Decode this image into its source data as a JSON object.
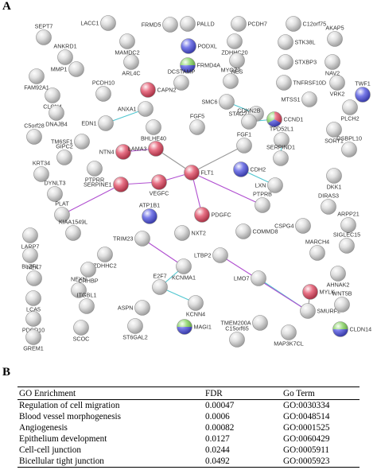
{
  "panel_a_label": "A",
  "panel_b_label": "B",
  "colors": {
    "red": "#e0435d",
    "blue": "#4b4fe0",
    "green": "#7ccf54",
    "grey": "#d6d6d6",
    "edge_purple": "#b04fd0",
    "edge_cyan": "#4fc6d0",
    "edge_grey": "#999999"
  },
  "network": {
    "nodes": [
      {
        "id": "SEPT7",
        "label": "SEPT7",
        "colors": [
          "grey"
        ]
      },
      {
        "id": "LACC1",
        "label": "LACC1",
        "colors": [
          "grey"
        ]
      },
      {
        "id": "FRMD5",
        "label": "FRMD5",
        "colors": [
          "grey"
        ]
      },
      {
        "id": "PALLD",
        "label": "PALLD",
        "colors": [
          "grey"
        ]
      },
      {
        "id": "PCDH7",
        "label": "PCDH7",
        "colors": [
          "grey"
        ]
      },
      {
        "id": "C12orf75",
        "label": "C12orf75",
        "colors": [
          "grey"
        ]
      },
      {
        "id": "ANKRD1",
        "label": "ANKRD1",
        "colors": [
          "grey"
        ]
      },
      {
        "id": "MAMDC2",
        "label": "MAMDC2",
        "colors": [
          "grey"
        ]
      },
      {
        "id": "PODXL",
        "label": "PODXL",
        "colors": [
          "blue"
        ]
      },
      {
        "id": "ZDHHC20",
        "label": "ZDHHC20",
        "colors": [
          "grey"
        ]
      },
      {
        "id": "STK38L",
        "label": "STK38L",
        "colors": [
          "grey"
        ]
      },
      {
        "id": "AKAP5",
        "label": "AKAP5",
        "colors": [
          "grey"
        ]
      },
      {
        "id": "FRMD4A",
        "label": "FRMD4A",
        "colors": [
          "blue",
          "green"
        ]
      },
      {
        "id": "NES",
        "label": "NES",
        "colors": [
          "grey"
        ]
      },
      {
        "id": "STXBP3",
        "label": "STXBP3",
        "colors": [
          "grey"
        ]
      },
      {
        "id": "NAV2",
        "label": "NAV2",
        "colors": [
          "grey"
        ]
      },
      {
        "id": "FAM92A1",
        "label": "FAM92A1",
        "colors": [
          "grey"
        ]
      },
      {
        "id": "MMP1",
        "label": "MMP1",
        "colors": [
          "grey"
        ]
      },
      {
        "id": "ARL4C",
        "label": "ARL4C",
        "colors": [
          "grey"
        ]
      },
      {
        "id": "DCSTAMP",
        "label": "DCSTAMP",
        "colors": [
          "grey"
        ]
      },
      {
        "id": "MYOZ2",
        "label": "MYOZ2",
        "colors": [
          "grey"
        ]
      },
      {
        "id": "TNFRSF10D",
        "label": "TNFRSF10D",
        "colors": [
          "grey"
        ]
      },
      {
        "id": "VRK2",
        "label": "VRK2",
        "colors": [
          "grey"
        ]
      },
      {
        "id": "CLCN4",
        "label": "CLCN4",
        "colors": [
          "grey"
        ]
      },
      {
        "id": "PCDH10",
        "label": "PCDH10",
        "colors": [
          "grey"
        ]
      },
      {
        "id": "CAPN2",
        "label": "CAPN2",
        "colors": [
          "red"
        ]
      },
      {
        "id": "MTSS1",
        "label": "MTSS1",
        "colors": [
          "grey"
        ]
      },
      {
        "id": "TWF1",
        "label": "TWF1",
        "colors": [
          "blue"
        ]
      },
      {
        "id": "ANXA1",
        "label": "ANXA1",
        "colors": [
          "grey"
        ]
      },
      {
        "id": "SMC6",
        "label": "SMC6",
        "colors": [
          "grey"
        ]
      },
      {
        "id": "STAG2",
        "label": "STAG2",
        "colors": [
          "grey"
        ]
      },
      {
        "id": "PLCH2",
        "label": "PLCH2",
        "colors": [
          "grey"
        ]
      },
      {
        "id": "DNAJB4",
        "label": "DNAJB4",
        "colors": [
          "grey"
        ]
      },
      {
        "id": "EDN1",
        "label": "EDN1",
        "colors": [
          "grey"
        ]
      },
      {
        "id": "CCND1",
        "label": "CCND1",
        "colors": [
          "red",
          "blue",
          "green"
        ]
      },
      {
        "id": "CDKN2B",
        "label": "CDKN2B",
        "colors": [
          "grey"
        ]
      },
      {
        "id": "BHLHE40",
        "label": "BHLHE40",
        "colors": [
          "grey"
        ]
      },
      {
        "id": "FGF5",
        "label": "FGF5",
        "colors": [
          "grey"
        ]
      },
      {
        "id": "SORT1",
        "label": "SORT1",
        "colors": [
          "grey"
        ]
      },
      {
        "id": "C5orf28",
        "label": "C5orf28",
        "colors": [
          "grey"
        ]
      },
      {
        "id": "TM6SF1",
        "label": "TM6SF1",
        "colors": [
          "grey"
        ]
      },
      {
        "id": "TPD52L1",
        "label": "TPD52L1",
        "colors": [
          "grey"
        ]
      },
      {
        "id": "GIPC2",
        "label": "GIPC2",
        "colors": [
          "grey"
        ]
      },
      {
        "id": "NTN4",
        "label": "NTN4",
        "colors": [
          "red"
        ]
      },
      {
        "id": "LAMA3",
        "label": "LAMA3",
        "colors": [
          "red"
        ]
      },
      {
        "id": "FGF1",
        "label": "FGF1",
        "colors": [
          "grey"
        ]
      },
      {
        "id": "OSBPL10",
        "label": "OSBPL10",
        "colors": [
          "grey"
        ]
      },
      {
        "id": "SERPIND1",
        "label": "SERPIND1",
        "colors": [
          "grey"
        ]
      },
      {
        "id": "KRT34",
        "label": "KRT34",
        "colors": [
          "grey"
        ]
      },
      {
        "id": "PTPRR",
        "label": "PTPRR",
        "colors": [
          "grey"
        ]
      },
      {
        "id": "FLT1",
        "label": "FLT1",
        "colors": [
          "red"
        ]
      },
      {
        "id": "CDH2",
        "label": "CDH2",
        "colors": [
          "blue"
        ]
      },
      {
        "id": "DKK1",
        "label": "DKK1",
        "colors": [
          "grey"
        ]
      },
      {
        "id": "DYNLT3",
        "label": "DYNLT3",
        "colors": [
          "grey"
        ]
      },
      {
        "id": "VEGFC",
        "label": "VEGFC",
        "colors": [
          "red"
        ]
      },
      {
        "id": "SERPINE1",
        "label": "SERPINE1",
        "colors": [
          "red"
        ]
      },
      {
        "id": "LXN",
        "label": "LXN",
        "colors": [
          "grey"
        ]
      },
      {
        "id": "PLAT",
        "label": "PLAT",
        "colors": [
          "grey"
        ]
      },
      {
        "id": "PTPRB",
        "label": "PTPRB",
        "colors": [
          "grey"
        ]
      },
      {
        "id": "DIRAS3",
        "label": "DIRAS3",
        "colors": [
          "grey"
        ]
      },
      {
        "id": "ATP1B1",
        "label": "ATP1B1",
        "colors": [
          "blue"
        ]
      },
      {
        "id": "PDGFC",
        "label": "PDGFC",
        "colors": [
          "red"
        ]
      },
      {
        "id": "CSPG4",
        "label": "CSPG4",
        "colors": [
          "grey"
        ]
      },
      {
        "id": "ARPP21",
        "label": "ARPP21",
        "colors": [
          "grey"
        ]
      },
      {
        "id": "LARP7",
        "label": "LARP7",
        "colors": [
          "grey"
        ]
      },
      {
        "id": "KIAA1549L",
        "label": "KIAA1549L",
        "colors": [
          "grey"
        ]
      },
      {
        "id": "TRIM23",
        "label": "TRIM23",
        "colors": [
          "grey"
        ]
      },
      {
        "id": "NXT2",
        "label": "NXT2",
        "colors": [
          "grey"
        ]
      },
      {
        "id": "COMMD8",
        "label": "COMMD8",
        "colors": [
          "grey"
        ]
      },
      {
        "id": "SIGLEC15",
        "label": "SIGLEC15",
        "colors": [
          "grey"
        ]
      },
      {
        "id": "BLZF1",
        "label": "BLZF1",
        "colors": [
          "grey"
        ]
      },
      {
        "id": "ZDHHC2",
        "label": "ZDHHC2",
        "colors": [
          "grey"
        ]
      },
      {
        "id": "LTBP2",
        "label": "LTBP2",
        "colors": [
          "grey"
        ]
      },
      {
        "id": "MARCH4",
        "label": "MARCH4",
        "colors": [
          "grey"
        ]
      },
      {
        "id": "NEK7",
        "label": "NEK7",
        "colors": [
          "grey"
        ]
      },
      {
        "id": "CRHBP",
        "label": "CRHBP",
        "colors": [
          "grey"
        ]
      },
      {
        "id": "KCNMA1",
        "label": "KCNMA1",
        "colors": [
          "grey"
        ]
      },
      {
        "id": "AHNAK2",
        "label": "AHNAK2",
        "colors": [
          "grey"
        ]
      },
      {
        "id": "NEXN",
        "label": "NEXN",
        "colors": [
          "grey"
        ]
      },
      {
        "id": "E2F7",
        "label": "E2F7",
        "colors": [
          "grey"
        ]
      },
      {
        "id": "LMO7",
        "label": "LMO7",
        "colors": [
          "grey"
        ]
      },
      {
        "id": "MYLK",
        "label": "MYLK",
        "colors": [
          "red"
        ]
      },
      {
        "id": "KCNN4",
        "label": "KCNN4",
        "colors": [
          "grey"
        ]
      },
      {
        "id": "LCA5",
        "label": "LCA5",
        "colors": [
          "grey"
        ]
      },
      {
        "id": "ITGBL1",
        "label": "ITGBL1",
        "colors": [
          "grey"
        ]
      },
      {
        "id": "ASPN",
        "label": "ASPN",
        "colors": [
          "grey"
        ]
      },
      {
        "id": "SMURF2",
        "label": "SMURF2",
        "colors": [
          "grey"
        ]
      },
      {
        "id": "WNT5B",
        "label": "WNT5B",
        "colors": [
          "grey"
        ]
      },
      {
        "id": "PDCD10",
        "label": "PDCD10",
        "colors": [
          "grey"
        ]
      },
      {
        "id": "TMEM200A",
        "label": "TMEM200A",
        "colors": [
          "grey"
        ]
      },
      {
        "id": "GREM1",
        "label": "GREM1",
        "colors": [
          "grey"
        ]
      },
      {
        "id": "SCOC",
        "label": "SCOC",
        "colors": [
          "grey"
        ]
      },
      {
        "id": "ST6GAL2",
        "label": "ST6GAL2",
        "colors": [
          "grey"
        ]
      },
      {
        "id": "MAGI1",
        "label": "MAGI1",
        "colors": [
          "blue",
          "green"
        ]
      },
      {
        "id": "C15orf65",
        "label": "C15orf65",
        "colors": [
          "grey"
        ]
      },
      {
        "id": "MAP3K7CL",
        "label": "MAP3K7CL",
        "colors": [
          "grey"
        ]
      },
      {
        "id": "CLDN14",
        "label": "CLDN14",
        "colors": [
          "blue",
          "green"
        ]
      }
    ],
    "edges": [
      {
        "from": "FLT1",
        "to": "VEGFC",
        "color": "edge_purple"
      },
      {
        "from": "FLT1",
        "to": "PDGFC",
        "color": "edge_purple"
      },
      {
        "from": "FLT1",
        "to": "PTPRB",
        "color": "edge_purple"
      },
      {
        "from": "FLT1",
        "to": "LAMA3",
        "color": "edge_grey"
      },
      {
        "from": "FLT1",
        "to": "FGF1",
        "color": "edge_grey"
      },
      {
        "from": "VEGFC",
        "to": "SERPINE1",
        "color": "edge_purple"
      },
      {
        "from": "SERPINE1",
        "to": "PLAT",
        "color": "edge_purple"
      },
      {
        "from": "NTN4",
        "to": "LAMA3",
        "color": "edge_purple"
      },
      {
        "from": "CDKN2B",
        "to": "CCND1",
        "color": "edge_cyan"
      },
      {
        "from": "CDH2",
        "to": "LXN",
        "color": "edge_cyan"
      },
      {
        "from": "ANXA1",
        "to": "EDN1",
        "color": "edge_cyan"
      },
      {
        "from": "SMC6",
        "to": "STAG2",
        "color": "edge_cyan"
      },
      {
        "from": "TPD52L1",
        "to": "SERPIND1",
        "color": "edge_cyan"
      },
      {
        "from": "TRIM23",
        "to": "KCNMA1",
        "color": "edge_purple"
      },
      {
        "from": "KCNMA1",
        "to": "E2F7",
        "color": "edge_cyan"
      },
      {
        "from": "E2F7",
        "to": "KCNN4",
        "color": "edge_cyan"
      },
      {
        "from": "LMO7",
        "to": "SMURF2",
        "color": "edge_cyan"
      },
      {
        "from": "SMURF2",
        "to": "LTBP2",
        "color": "edge_purple"
      },
      {
        "from": "MYLK",
        "to": "SMURF2",
        "color": "edge_grey"
      }
    ]
  },
  "go_table": {
    "headers": [
      "GO Enrichment",
      "FDR",
      "Go Term"
    ],
    "rows": [
      {
        "enrichment": "Regulation of cell migration",
        "fdr": "0.00047",
        "term": "GO:0030334"
      },
      {
        "enrichment": "Blood vessel morphogenesis",
        "fdr": "0.0006",
        "term": "GO:0048514"
      },
      {
        "enrichment": "Angiogenesis",
        "fdr": "0.00082",
        "term": "GO:0001525"
      },
      {
        "enrichment": "Epithelium development",
        "fdr": "0.0127",
        "term": "GO:0060429"
      },
      {
        "enrichment": "Cell-cell junction",
        "fdr": "0.0244",
        "term": "GO:0005911"
      },
      {
        "enrichment": "Bicellular tight junction",
        "fdr": "0.0492",
        "term": "GO:0005923"
      }
    ]
  }
}
